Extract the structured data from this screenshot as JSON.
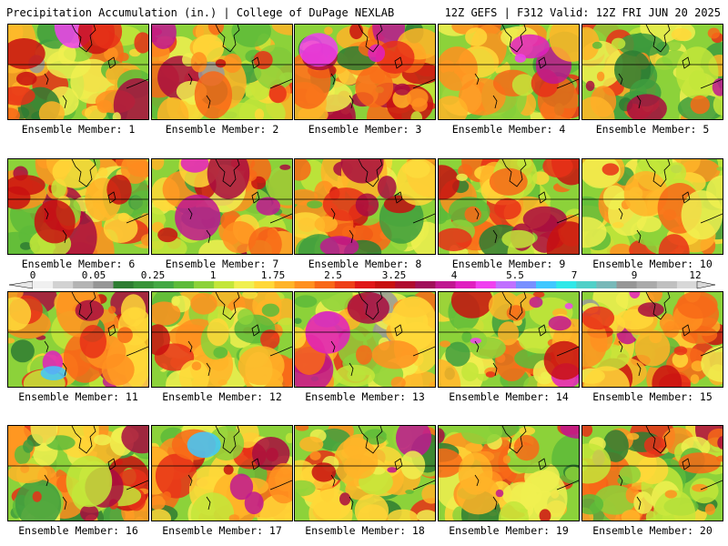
{
  "header": {
    "left": "Precipitation Accumulation (in.) | College of DuPage NEXLAB",
    "right": "12Z GEFS | F312 Valid: 12Z FRI JUN 20 2025"
  },
  "legend": {
    "labels": [
      "0",
      "0.05",
      "0.25",
      "1",
      "1.75",
      "2.5",
      "3.25",
      "4",
      "5.5",
      "7",
      "9",
      "12"
    ],
    "colors": [
      "#f0f0f0",
      "#d2d2d2",
      "#b4b4b4",
      "#969696",
      "#2e7d32",
      "#389438",
      "#43a843",
      "#5dbb3a",
      "#8cd23a",
      "#c3e63a",
      "#f0f050",
      "#ffd838",
      "#ffb428",
      "#ff9020",
      "#f86818",
      "#ee4018",
      "#e01818",
      "#c81010",
      "#b00c30",
      "#a0105a",
      "#c01890",
      "#e020c0",
      "#f040f0",
      "#c070ff",
      "#7890ff",
      "#40c8ff",
      "#30e8e8",
      "#50d0c8",
      "#78b8b8",
      "#969696",
      "#aaaaaa",
      "#c0c0c0",
      "#d8d8d8"
    ]
  },
  "members": [
    {
      "label": "Ensemble Member: 1",
      "seed": 11,
      "intensity": 0.55
    },
    {
      "label": "Ensemble Member: 2",
      "seed": 23,
      "intensity": 0.7
    },
    {
      "label": "Ensemble Member: 3",
      "seed": 37,
      "intensity": 0.85
    },
    {
      "label": "Ensemble Member: 4",
      "seed": 41,
      "intensity": 0.45
    },
    {
      "label": "Ensemble Member: 5",
      "seed": 53,
      "intensity": 0.4
    },
    {
      "label": "Ensemble Member: 6",
      "seed": 61,
      "intensity": 0.65
    },
    {
      "label": "Ensemble Member: 7",
      "seed": 79,
      "intensity": 0.75
    },
    {
      "label": "Ensemble Member: 8",
      "seed": 83,
      "intensity": 0.6
    },
    {
      "label": "Ensemble Member: 9",
      "seed": 97,
      "intensity": 0.6
    },
    {
      "label": "Ensemble Member: 10",
      "seed": 101,
      "intensity": 0.55
    },
    {
      "label": "Ensemble Member: 11",
      "seed": 113,
      "intensity": 0.8
    },
    {
      "label": "Ensemble Member: 12",
      "seed": 127,
      "intensity": 0.5
    },
    {
      "label": "Ensemble Member: 13",
      "seed": 131,
      "intensity": 0.4
    },
    {
      "label": "Ensemble Member: 14",
      "seed": 149,
      "intensity": 0.6
    },
    {
      "label": "Ensemble Member: 15",
      "seed": 157,
      "intensity": 0.8
    },
    {
      "label": "Ensemble Member: 16",
      "seed": 163,
      "intensity": 0.5
    },
    {
      "label": "Ensemble Member: 17",
      "seed": 173,
      "intensity": 0.7
    },
    {
      "label": "Ensemble Member: 18",
      "seed": 181,
      "intensity": 0.55
    },
    {
      "label": "Ensemble Member: 19",
      "seed": 191,
      "intensity": 0.5
    },
    {
      "label": "Ensemble Member: 20",
      "seed": 199,
      "intensity": 0.6
    }
  ]
}
